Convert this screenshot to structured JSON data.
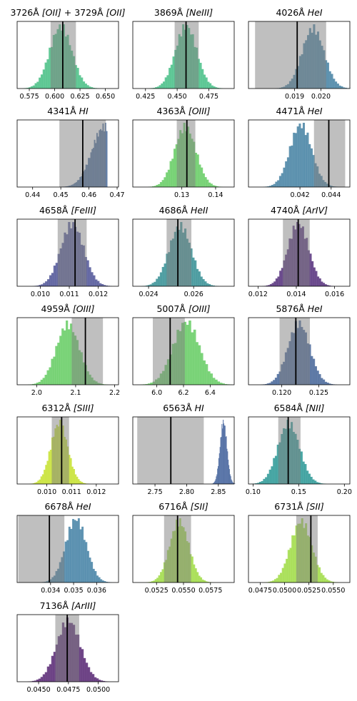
{
  "chart_data": [
    {
      "type": "histogram",
      "title_main": "3726Å",
      "title_ion": "[OII]",
      "title_main2": "+ 3729Å",
      "title_ion2": "[OII]",
      "xlim": [
        0.563,
        0.663
      ],
      "ticks": [
        0.575,
        0.6,
        0.625,
        0.65
      ],
      "tick_labels": [
        "0.575",
        "0.600",
        "0.625",
        "0.650"
      ],
      "color": "#3dbb7d",
      "dist": {
        "mu": 0.606,
        "sigma": 0.011
      },
      "band": [
        0.596,
        0.621
      ],
      "median": 0.608
    },
    {
      "type": "histogram",
      "title_main": "3869Å",
      "title_ion": "[NeIII]",
      "xlim": [
        0.415,
        0.495
      ],
      "ticks": [
        0.425,
        0.45,
        0.475
      ],
      "tick_labels": [
        "0.425",
        "0.450",
        "0.475"
      ],
      "color": "#3cbb80",
      "dist": {
        "mu": 0.457,
        "sigma": 0.0085
      },
      "band": [
        0.448,
        0.467
      ],
      "median": 0.457
    },
    {
      "type": "histogram",
      "title_main": "4026Å",
      "title_ion": "HeI",
      "xlim": [
        0.01725,
        0.0211
      ],
      "ticks": [
        0.019,
        0.02
      ],
      "tick_labels": [
        "0.019",
        "0.020"
      ],
      "color": "#3b7a9e",
      "dist": {
        "mu": 0.0197,
        "sigma": 0.00042
      },
      "band": [
        0.0175,
        0.0202
      ],
      "median": 0.0191
    },
    {
      "type": "histogram",
      "title_main": "4341Å",
      "title_ion": "HI",
      "xlim": [
        0.4345,
        0.4705
      ],
      "ticks": [
        0.44,
        0.45,
        0.46,
        0.47
      ],
      "tick_labels": [
        "0.44",
        "0.45",
        "0.46",
        "0.47"
      ],
      "color": "#3f6395",
      "dist": {
        "mu": 0.4655,
        "sigma": 0.0045,
        "max": 0.4665
      },
      "band": [
        0.4495,
        0.466
      ],
      "median": 0.4578
    },
    {
      "type": "histogram",
      "title_main": "4363Å",
      "title_ion": "[OIII]",
      "xlim": [
        0.1155,
        0.1455
      ],
      "ticks": [
        0.13,
        0.14
      ],
      "tick_labels": [
        "0.13",
        "0.14"
      ],
      "color": "#5cc95a",
      "dist": {
        "mu": 0.131,
        "sigma": 0.0032
      },
      "band": [
        0.1285,
        0.134
      ],
      "median": 0.1315
    },
    {
      "type": "histogram",
      "title_main": "4471Å",
      "title_ion": "HeI",
      "xlim": [
        0.0387,
        0.0452
      ],
      "ticks": [
        0.042,
        0.044
      ],
      "tick_labels": [
        "0.042",
        "0.044"
      ],
      "color": "#3b7a9e",
      "dist": {
        "mu": 0.04205,
        "sigma": 0.0007
      },
      "band": [
        0.0429,
        0.0449
      ],
      "median": 0.04385
    },
    {
      "type": "histogram",
      "title_main": "4658Å",
      "title_ion": "[FeIII]",
      "xlim": [
        0.0092,
        0.0127
      ],
      "ticks": [
        0.01,
        0.011,
        0.012
      ],
      "tick_labels": [
        "0.010",
        "0.011",
        "0.012"
      ],
      "color": "#454a91",
      "dist": {
        "mu": 0.0111,
        "sigma": 0.0004
      },
      "band": [
        0.0106,
        0.0116
      ],
      "median": 0.0112
    },
    {
      "type": "histogram",
      "title_main": "4686Å",
      "title_ion": "HeII",
      "xlim": [
        0.0233,
        0.0278
      ],
      "ticks": [
        0.024,
        0.026
      ],
      "tick_labels": [
        "0.024",
        "0.026"
      ],
      "color": "#2b8a8e",
      "dist": {
        "mu": 0.0254,
        "sigma": 0.0005
      },
      "band": [
        0.0248,
        0.0259
      ],
      "median": 0.0253
    },
    {
      "type": "histogram",
      "title_main": "4740Å",
      "title_ion": "[ArIV]",
      "xlim": [
        0.0115,
        0.0168
      ],
      "ticks": [
        0.012,
        0.014,
        0.016
      ],
      "tick_labels": [
        "0.012",
        "0.014",
        "0.016"
      ],
      "color": "#4b2374",
      "dist": {
        "mu": 0.0141,
        "sigma": 0.00055
      },
      "band": [
        0.0133,
        0.0147
      ],
      "median": 0.0141
    },
    {
      "type": "histogram",
      "title_main": "4959Å",
      "title_ion": "[OIII]",
      "xlim": [
        1.95,
        2.21
      ],
      "ticks": [
        2.0,
        2.1,
        2.2
      ],
      "tick_labels": [
        "2.0",
        "2.1",
        "2.2"
      ],
      "color": "#5cc95a",
      "dist": {
        "mu": 2.08,
        "sigma": 0.03
      },
      "band": [
        2.09,
        2.17
      ],
      "median": 2.125
    },
    {
      "type": "histogram",
      "title_main": "5007Å",
      "title_ion": "[OIII]",
      "xlim": [
        5.82,
        6.58
      ],
      "ticks": [
        6.0,
        6.2,
        6.4
      ],
      "tick_labels": [
        "6.0",
        "6.2",
        "6.4"
      ],
      "color": "#5cc95a",
      "dist": {
        "mu": 6.22,
        "sigma": 0.1
      },
      "band": [
        5.97,
        6.21
      ],
      "median": 6.1
    },
    {
      "type": "histogram",
      "title_main": "5876Å",
      "title_ion": "HeI",
      "xlim": [
        0.1155,
        0.1292
      ],
      "ticks": [
        0.12,
        0.125
      ],
      "tick_labels": [
        "0.120",
        "0.125"
      ],
      "color": "#3b5d92",
      "dist": {
        "mu": 0.1223,
        "sigma": 0.0015
      },
      "band": [
        0.1197,
        0.1238
      ],
      "median": 0.1219
    },
    {
      "type": "histogram",
      "title_main": "6312Å",
      "title_ion": "[SIII]",
      "xlim": [
        0.0088,
        0.0129
      ],
      "ticks": [
        0.01,
        0.011,
        0.012
      ],
      "tick_labels": [
        "0.010",
        "0.011",
        "0.012"
      ],
      "color": "#c3e023",
      "dist": {
        "mu": 0.0105,
        "sigma": 0.00035
      },
      "band": [
        0.0102,
        0.0109
      ],
      "median": 0.0106
    },
    {
      "type": "histogram",
      "title_main": "6563Å",
      "title_ion": "HI",
      "xlim": [
        2.715,
        2.875
      ],
      "ticks": [
        2.75,
        2.8,
        2.85
      ],
      "tick_labels": [
        "2.75",
        "2.80",
        "2.85"
      ],
      "color": "#3f5f9a",
      "dist": {
        "mu": 2.858,
        "sigma": 0.0055
      },
      "band": [
        2.722,
        2.827
      ],
      "median": 2.775
    },
    {
      "type": "histogram",
      "title_main": "6584Å",
      "title_ion": "[NII]",
      "xlim": [
        0.095,
        0.206
      ],
      "ticks": [
        0.1,
        0.15,
        0.2
      ],
      "tick_labels": [
        "0.10",
        "0.15",
        "0.20"
      ],
      "color": "#1f9290",
      "dist": {
        "mu": 0.139,
        "sigma": 0.012
      },
      "band": [
        0.1276,
        0.152
      ],
      "median": 0.1385
    },
    {
      "type": "histogram",
      "title_main": "6678Å",
      "title_ion": "HeI",
      "xlim": [
        0.03255,
        0.03695
      ],
      "ticks": [
        0.034,
        0.035,
        0.036
      ],
      "tick_labels": [
        "0.034",
        "0.035",
        "0.036"
      ],
      "color": "#3a7ba0",
      "dist": {
        "mu": 0.0351,
        "sigma": 0.00045
      },
      "band": [
        0.0326,
        0.0346
      ],
      "median": 0.03395
    },
    {
      "type": "histogram",
      "title_main": "6716Å",
      "title_ion": "[SII]",
      "xlim": [
        0.0503,
        0.0597
      ],
      "ticks": [
        0.0525,
        0.055,
        0.0575
      ],
      "tick_labels": [
        "0.0525",
        "0.0550",
        "0.0575"
      ],
      "color": "#9ad93a",
      "dist": {
        "mu": 0.0546,
        "sigma": 0.0009
      },
      "band": [
        0.0532,
        0.0557
      ],
      "median": 0.05445
    },
    {
      "type": "histogram",
      "title_main": "6731Å",
      "title_ion": "[SII]",
      "xlim": [
        0.0463,
        0.0567
      ],
      "ticks": [
        0.0475,
        0.05,
        0.0525,
        0.055
      ],
      "tick_labels": [
        "0.0475",
        "0.0500",
        "0.0525",
        "0.0550"
      ],
      "color": "#9ad93a",
      "dist": {
        "mu": 0.0517,
        "sigma": 0.0011
      },
      "band": [
        0.0512,
        0.0534
      ],
      "median": 0.0527
    },
    {
      "type": "histogram",
      "title_main": "7136Å",
      "title_ion": "[ArIII]",
      "xlim": [
        0.0432,
        0.0517
      ],
      "ticks": [
        0.045,
        0.0475,
        0.05
      ],
      "tick_labels": [
        "0.0450",
        "0.0475",
        "0.0500"
      ],
      "color": "#4e1a6c",
      "dist": {
        "mu": 0.0475,
        "sigma": 0.001
      },
      "band": [
        0.0464,
        0.0484
      ],
      "median": 0.0474
    }
  ]
}
